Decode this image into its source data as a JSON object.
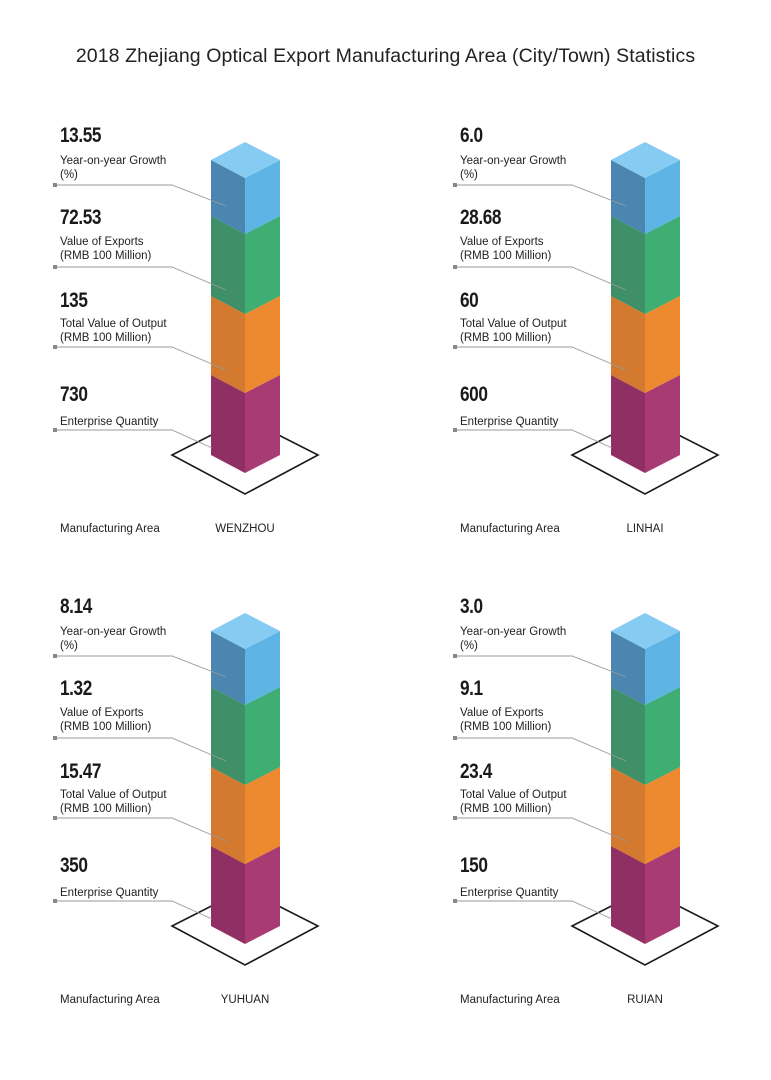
{
  "title": "2018 Zhejiang Optical Export Manufacturing Area (City/Town) Statistics",
  "metric_labels": {
    "growth": [
      "Year-on-year Growth",
      "(%)"
    ],
    "exports": [
      "Value of Exports",
      "(RMB 100 Million)"
    ],
    "output": [
      "Total Value of Output",
      "(RMB 100 Million)"
    ],
    "enterprises": [
      "Enterprise Quantity"
    ]
  },
  "area_label": "Manufacturing Area",
  "colors": {
    "blue_left": "#4a86b0",
    "blue_right": "#5fb4e6",
    "blue_top": "#86cbf2",
    "green_left": "#3f9068",
    "green_right": "#3fae73",
    "green_top": "#7acc9c",
    "orange_left": "#d47a30",
    "orange_right": "#ed8a30",
    "orange_top": "#f4a65a",
    "magenta_left": "#8f2f63",
    "magenta_right": "#a93b74",
    "magenta_top": "#c8669a"
  },
  "chart_data": [
    {
      "type": "table",
      "area": "WENZHOU",
      "growth": "13.55",
      "exports": "72.53",
      "output": "135",
      "enterprises": "730"
    },
    {
      "type": "table",
      "area": "LINHAI",
      "growth": "6.0",
      "exports": "28.68",
      "output": "60",
      "enterprises": "600"
    },
    {
      "type": "table",
      "area": "YUHUAN",
      "growth": "8.14",
      "exports": "1.32",
      "output": "15.47",
      "enterprises": "350"
    },
    {
      "type": "table",
      "area": "RUIAN",
      "growth": "3.0",
      "exports": "9.1",
      "output": "23.4",
      "enterprises": "150"
    }
  ]
}
